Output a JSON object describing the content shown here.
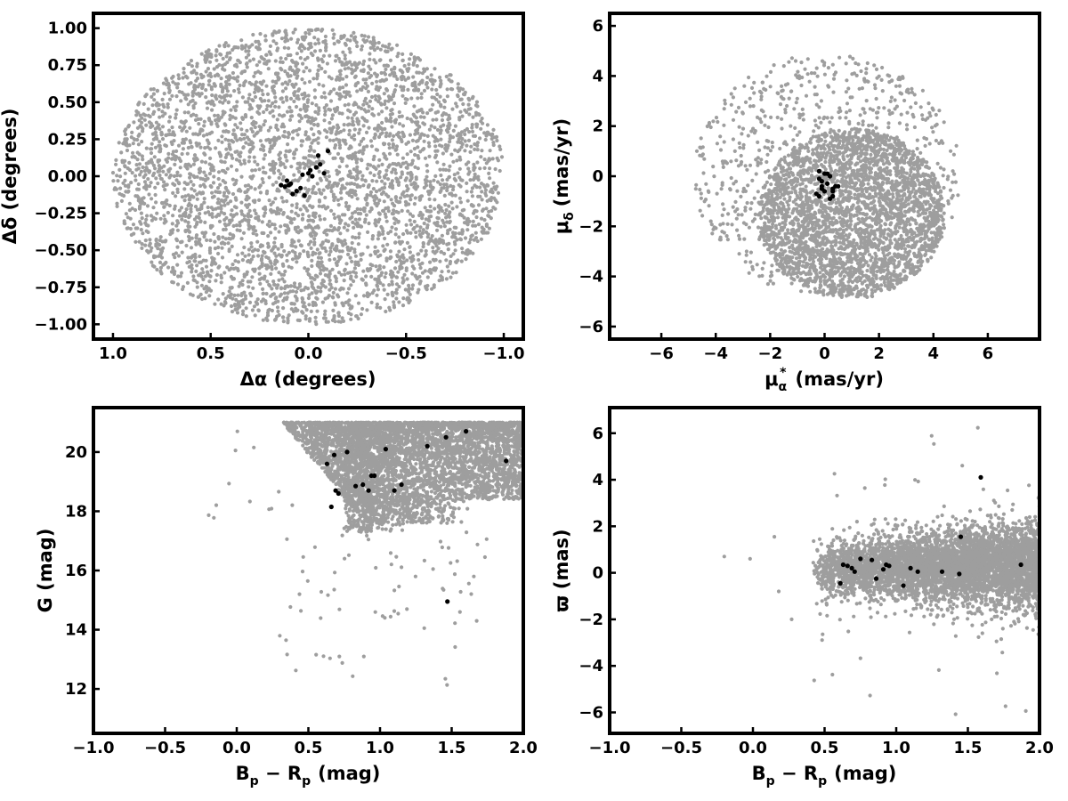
{
  "colors": {
    "field": "#9e9e9e",
    "members": "#000000",
    "frame": "#000000"
  },
  "chart_data": [
    {
      "type": "scatter",
      "xlabel": "Δα (degrees)",
      "ylabel": "Δδ (degrees)",
      "xlim": [
        1.1,
        -1.1
      ],
      "ylim": [
        -1.1,
        1.1
      ],
      "x_inverted": true,
      "xticks": [
        1.0,
        0.5,
        0.0,
        -0.5,
        -1.0
      ],
      "xtick_labels": [
        "1.0",
        "0.5",
        "0.0",
        "−0.5",
        "−1.0"
      ],
      "yticks": [
        1.0,
        0.75,
        0.5,
        0.25,
        0.0,
        -0.25,
        -0.5,
        -0.75,
        -1.0
      ],
      "ytick_labels": [
        "1.00",
        "0.75",
        "0.50",
        "0.25",
        "0.00",
        "−0.25",
        "−0.50",
        "−0.75",
        "−1.00"
      ],
      "field_distribution": {
        "shape": "uniform disk",
        "center": [
          0.0,
          0.0
        ],
        "radius": 1.0,
        "approx_count": 4000
      },
      "series": [
        {
          "x": [
            0.1,
            0.04,
            -0.02,
            0.12,
            0.06,
            0.0,
            -0.04,
            -0.08,
            -0.1,
            0.08,
            0.02,
            -0.06,
            0.14,
            0.03,
            -0.01,
            -0.05,
            0.09,
            0.11
          ],
          "y": [
            -0.06,
            -0.08,
            0.0,
            -0.07,
            -0.1,
            0.02,
            0.06,
            0.02,
            0.17,
            -0.12,
            -0.13,
            0.08,
            -0.06,
            0.01,
            0.04,
            0.14,
            -0.05,
            -0.03
          ]
        }
      ]
    },
    {
      "type": "scatter",
      "xlabel": "μ",
      "xlabel_sub": "α",
      "xlabel_sup": "*",
      "xlabel_unit": "(mas/yr)",
      "ylabel": "μ",
      "ylabel_sub": "δ",
      "ylabel_unit": "(mas/yr)",
      "xlim": [
        -7.9,
        7.9
      ],
      "ylim": [
        -6.5,
        6.5
      ],
      "xticks": [
        -6,
        -4,
        -2,
        0,
        2,
        4,
        6
      ],
      "xtick_labels": [
        "−6",
        "−4",
        "−2",
        "0",
        "2",
        "4",
        "6"
      ],
      "yticks": [
        6,
        4,
        2,
        0,
        -2,
        -4,
        -6
      ],
      "ytick_labels": [
        "6",
        "4",
        "2",
        "0",
        "−2",
        "−4",
        "−6"
      ],
      "field_distribution": {
        "shape": "disk with dense core",
        "center": [
          0.5,
          0.0
        ],
        "radius": 4.9,
        "core_center": [
          1.0,
          -1.5
        ],
        "core_radius": 3.3,
        "approx_count": 4000
      },
      "series": [
        {
          "x": [
            -0.2,
            0.0,
            0.2,
            -0.1,
            0.1,
            0.3,
            0.4,
            -0.3,
            -0.2,
            0.2,
            0.0,
            -0.1,
            0.3,
            0.1,
            -0.2,
            0.5,
            0.3,
            -0.1
          ],
          "y": [
            0.2,
            0.1,
            0.0,
            -0.2,
            -0.3,
            -0.5,
            -0.4,
            -0.7,
            -0.8,
            -0.9,
            -0.6,
            -0.4,
            -0.8,
            0.1,
            -0.1,
            -0.4,
            -0.6,
            -0.5
          ]
        }
      ]
    },
    {
      "type": "scatter",
      "xlabel": "B",
      "xlabel_sub1": "p",
      "xlabel_mid": " − R",
      "xlabel_sub2": "p",
      "xlabel_unit": "(mag)",
      "ylabel": "G (mag)",
      "xlim": [
        -1.0,
        2.0
      ],
      "ylim": [
        10.5,
        21.5
      ],
      "xticks": [
        -1.0,
        -0.5,
        0.0,
        0.5,
        1.0,
        1.5,
        2.0
      ],
      "xtick_labels": [
        "−1.0",
        "−0.5",
        "0.0",
        "0.5",
        "1.0",
        "1.5",
        "2.0"
      ],
      "yticks": [
        12,
        14,
        16,
        18,
        20
      ],
      "ytick_labels": [
        "12",
        "14",
        "16",
        "18",
        "20"
      ],
      "field_distribution": {
        "shape": "color-magnitude wedge",
        "approx_count": 4500
      },
      "series": [
        {
          "x": [
            0.68,
            0.77,
            1.04,
            1.33,
            1.46,
            1.6,
            0.63,
            0.96,
            0.94,
            0.83,
            0.88,
            0.92,
            0.69,
            0.66,
            1.1,
            1.15,
            1.47,
            1.88,
            0.71
          ],
          "y": [
            19.9,
            20.0,
            20.1,
            20.2,
            20.5,
            20.7,
            19.6,
            19.2,
            19.2,
            18.85,
            18.9,
            18.7,
            18.7,
            18.15,
            18.7,
            18.9,
            14.95,
            19.7,
            18.6
          ]
        }
      ]
    },
    {
      "type": "scatter",
      "xlabel": "B",
      "xlabel_sub1": "p",
      "xlabel_mid": " − R",
      "xlabel_sub2": "p",
      "xlabel_unit": "(mag)",
      "ylabel": "ϖ (mas)",
      "xlim": [
        -1.0,
        2.0
      ],
      "ylim": [
        -6.9,
        7.1
      ],
      "xticks": [
        -1.0,
        -0.5,
        0.0,
        0.5,
        1.0,
        1.5,
        2.0
      ],
      "xtick_labels": [
        "−1.0",
        "−0.5",
        "0.0",
        "0.5",
        "1.0",
        "1.5",
        "2.0"
      ],
      "yticks": [
        6,
        4,
        2,
        0,
        -2,
        -4,
        -6
      ],
      "ytick_labels": [
        "6",
        "4",
        "2",
        "0",
        "−2",
        "−4",
        "−6"
      ],
      "field_distribution": {
        "shape": "horizontal band",
        "approx_count": 4500
      },
      "series": [
        {
          "x": [
            0.63,
            0.66,
            0.69,
            0.71,
            0.75,
            0.83,
            0.86,
            0.91,
            0.93,
            0.95,
            1.05,
            1.1,
            1.15,
            1.32,
            1.44,
            1.45,
            1.59,
            1.87,
            0.61
          ],
          "y": [
            0.35,
            0.3,
            0.2,
            0.05,
            0.6,
            0.55,
            -0.25,
            0.15,
            0.35,
            0.3,
            -0.55,
            0.2,
            0.05,
            0.05,
            -0.05,
            1.55,
            4.1,
            0.35,
            -0.45
          ]
        }
      ]
    }
  ]
}
